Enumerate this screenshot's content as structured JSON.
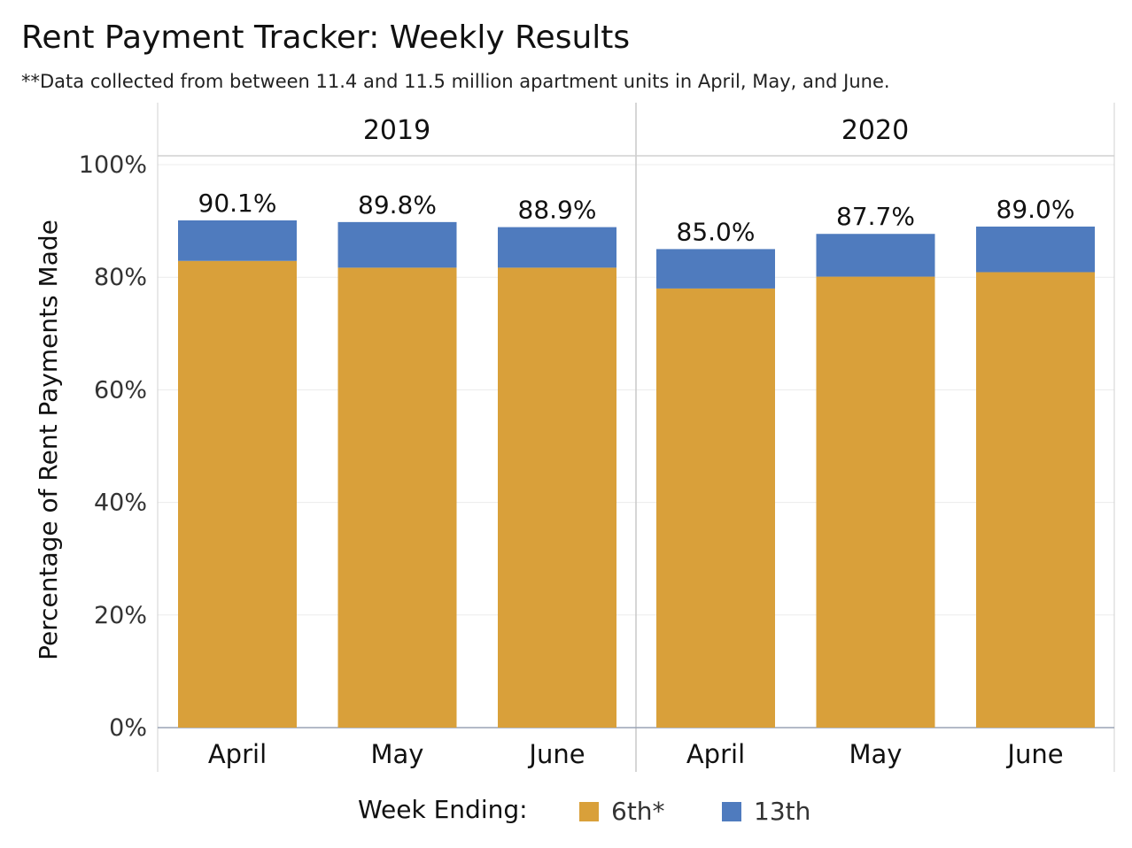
{
  "title": "Rent Payment Tracker: Weekly Results",
  "subtitle": "**Data collected from between 11.4 and 11.5 million apartment units in April, May, and June.",
  "chart_data": {
    "type": "bar",
    "stacked": true,
    "panels": [
      "2019",
      "2020"
    ],
    "categories": [
      "April",
      "May",
      "June"
    ],
    "series": [
      {
        "name": "6th*",
        "color": "#D9A03A",
        "values": {
          "2019": [
            82.9,
            81.7,
            81.7
          ],
          "2020": [
            78.0,
            80.1,
            80.9
          ]
        }
      },
      {
        "name": "13th",
        "color": "#4F7BBE",
        "values": {
          "2019": [
            7.2,
            8.1,
            7.2
          ],
          "2020": [
            7.0,
            7.6,
            8.1
          ]
        }
      }
    ],
    "data_labels": {
      "2019": [
        "90.1%",
        "89.8%",
        "88.9%"
      ],
      "2020": [
        "85.0%",
        "87.7%",
        "89.0%"
      ]
    },
    "ylabel": "Percentage of Rent Payments Made",
    "xlabel": "",
    "ylim": [
      0,
      100
    ],
    "yticks": [
      "0%",
      "20%",
      "40%",
      "60%",
      "80%",
      "100%"
    ],
    "legend_title": "Week Ending:",
    "legend_position": "bottom",
    "grid": true
  }
}
